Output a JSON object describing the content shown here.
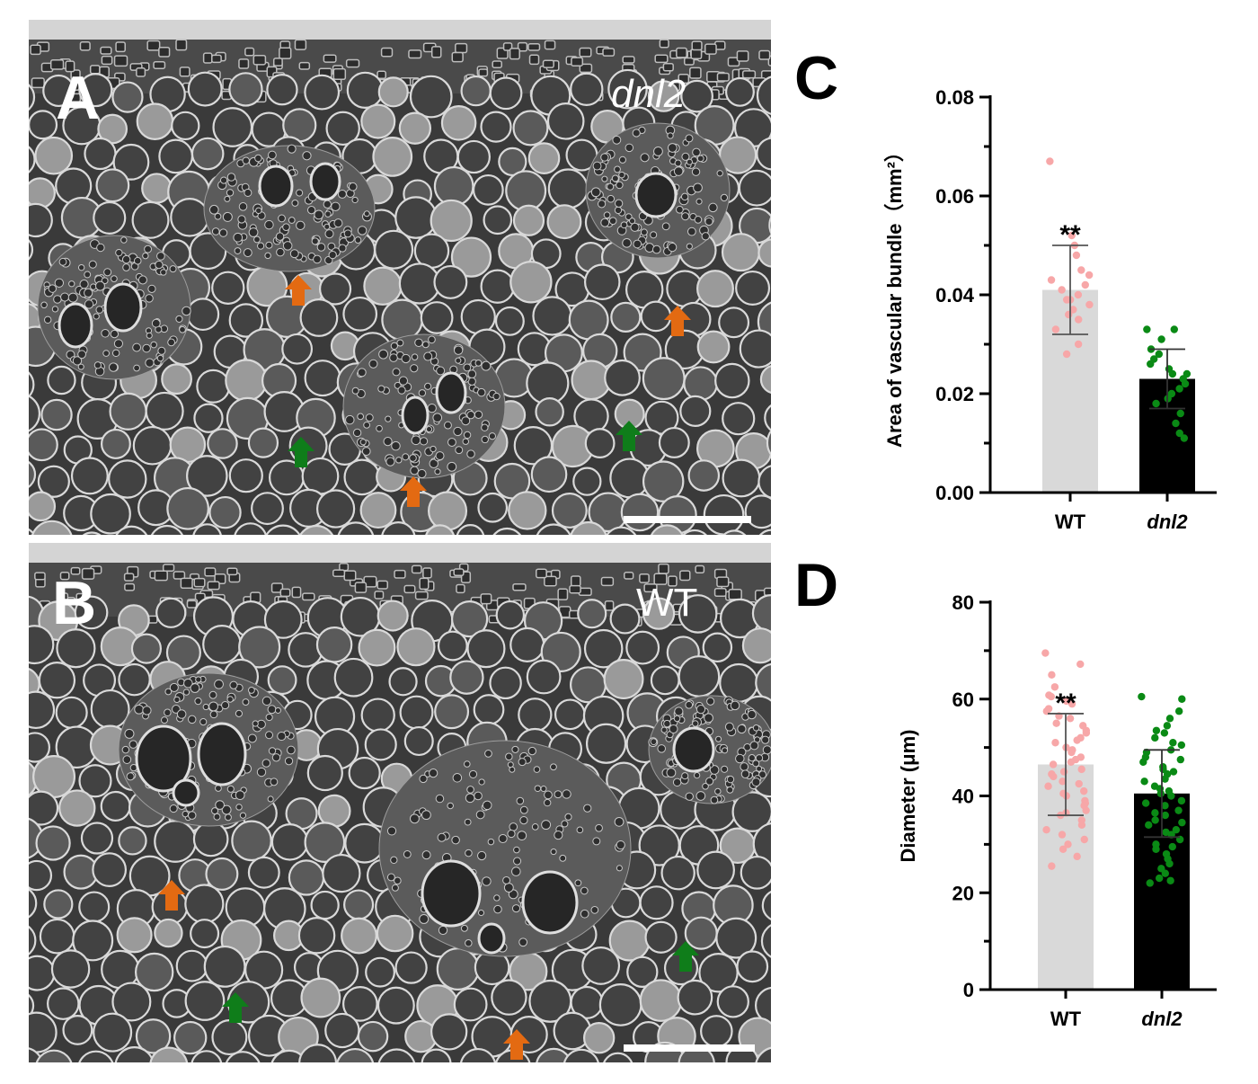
{
  "colors": {
    "wt_bar": "#d9d9d9",
    "wt_points": "#f7a7a8",
    "dnl2_bar": "#000000",
    "dnl2_points": "#0a8a15",
    "arrow_orange": "#e36a12",
    "arrow_green": "#0f7d1a",
    "axis": "#000000"
  },
  "panels": {
    "A": {
      "letter": "A",
      "sample": "dnl2",
      "arrows": [
        "orange",
        "orange",
        "orange",
        "green",
        "green"
      ]
    },
    "B": {
      "letter": "B",
      "sample": "WT",
      "arrows": [
        "orange",
        "orange",
        "green",
        "green"
      ]
    }
  },
  "icons": {
    "arrow": "up-arrow-icon",
    "scale_bar": "scale-bar"
  },
  "chart_data": [
    {
      "panel": "C",
      "type": "bar",
      "categories": [
        "WT",
        "dnl2"
      ],
      "category_italic": [
        false,
        true
      ],
      "ylabel": "Area of vascular bundle（mm²）",
      "ylim": [
        0,
        0.08
      ],
      "yticks": [
        0.0,
        0.02,
        0.04,
        0.06,
        0.08
      ],
      "ytick_labels": [
        "0.00",
        "0.02",
        "0.04",
        "0.06",
        "0.08"
      ],
      "means": [
        0.041,
        0.023
      ],
      "errors": [
        0.009,
        0.006
      ],
      "significance": {
        "category": "WT",
        "label": "**"
      },
      "points": [
        [
          0.067,
          0.052,
          0.05,
          0.048,
          0.045,
          0.044,
          0.043,
          0.042,
          0.041,
          0.04,
          0.039,
          0.039,
          0.038,
          0.037,
          0.036,
          0.035,
          0.033,
          0.03,
          0.028
        ],
        [
          0.033,
          0.033,
          0.031,
          0.029,
          0.028,
          0.027,
          0.026,
          0.025,
          0.024,
          0.024,
          0.023,
          0.022,
          0.021,
          0.02,
          0.019,
          0.018,
          0.016,
          0.014,
          0.012,
          0.011
        ]
      ]
    },
    {
      "panel": "D",
      "type": "bar",
      "categories": [
        "WT",
        "dnl2"
      ],
      "category_italic": [
        false,
        true
      ],
      "ylabel": "Diameter (μm)",
      "ylim": [
        0,
        80
      ],
      "yticks": [
        0,
        20,
        40,
        60,
        80
      ],
      "ytick_labels": [
        "0",
        "20",
        "40",
        "60",
        "80"
      ],
      "means": [
        46.5,
        40.5
      ],
      "errors": [
        10.5,
        9.0
      ],
      "significance": {
        "category": "WT",
        "label": "**"
      },
      "points": [
        [
          69.5,
          67.2,
          65.0,
          62.5,
          60.8,
          60.5,
          59.6,
          59.0,
          58.0,
          57.5,
          56.5,
          56.0,
          55.0,
          54.5,
          53.5,
          53.0,
          52.0,
          51.5,
          51.0,
          50.0,
          49.5,
          49.0,
          48.0,
          47.5,
          47.0,
          46.5,
          45.5,
          45.0,
          44.5,
          44.0,
          43.0,
          42.5,
          42.0,
          41.0,
          40.5,
          40.0,
          39.0,
          38.5,
          38.0,
          37.0,
          36.5,
          36.0,
          35.0,
          34.0,
          33.0,
          32.0,
          31.0,
          30.0,
          29.0,
          27.5,
          25.5
        ],
        [
          60.5,
          60.0,
          57.5,
          56.0,
          54.5,
          53.5,
          53.0,
          52.0,
          51.0,
          50.5,
          49.5,
          49.0,
          48.0,
          47.5,
          47.0,
          46.0,
          45.5,
          45.0,
          44.5,
          43.5,
          43.0,
          42.0,
          41.5,
          41.0,
          40.5,
          40.0,
          39.0,
          38.5,
          38.0,
          37.0,
          36.5,
          36.0,
          35.0,
          34.5,
          34.0,
          33.0,
          32.5,
          32.0,
          31.0,
          30.0,
          29.5,
          29.0,
          28.0,
          27.0,
          26.0,
          25.0,
          24.0,
          23.0,
          22.5,
          22.0
        ]
      ]
    }
  ]
}
